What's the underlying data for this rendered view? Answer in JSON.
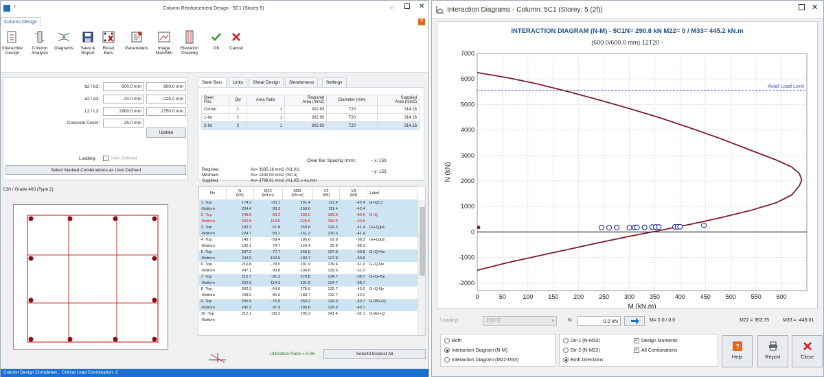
{
  "left": {
    "title": "Column Reinforcement Design -  5C1  (Storey 5)",
    "tab": "Column Design",
    "ribbon": [
      {
        "l1": "Interactive",
        "l2": "Design"
      },
      {
        "l1": "Column",
        "l2": "Analysis"
      },
      {
        "l1": "Diagrams",
        "l2": ""
      },
      {
        "l1": "Save &",
        "l2": "Report"
      },
      {
        "l1": "Reset",
        "l2": "Bars"
      },
      {
        "l1": "Parameters",
        "l2": ""
      },
      {
        "l1": "Image",
        "l2": "Max/Min"
      },
      {
        "l1": "Elevation",
        "l2": "Drawing"
      },
      {
        "l1": "OK",
        "l2": ""
      },
      {
        "l1": "Cancel",
        "l2": ""
      }
    ],
    "dims": [
      {
        "label": "b2 / b3:",
        "v1": "600.0 mm",
        "v2": "600.0 mm"
      },
      {
        "label": "e2 / e3:",
        "v1": "-20.0 mm",
        "v2": "-225.0 mm"
      },
      {
        "label": "L2 / L3:",
        "v1": "2900.0 mm",
        "v2": "2750.0 mm"
      }
    ],
    "cover_label": "Concrete Cover:",
    "cover_value": "25.0 mm",
    "update": "Update",
    "loading_label": "Loading:",
    "user_defined": "User Defined",
    "select_marked": "Select Marked Combinations as User Defined",
    "material": "C30 / Grade 460 (Type 2)",
    "tabs": [
      "Steel Bars",
      "Links",
      "Shear Design",
      "Slenderness",
      "Settings"
    ],
    "steel_headers": [
      "Steel\nPos.",
      "Qty",
      "Area Ratio",
      "Required\nArea (mm2)",
      "Diameter (mm)",
      "Supplied\nArea (mm2)"
    ],
    "steel_rows": [
      [
        "Corner",
        "1",
        "1",
        "302.93",
        "T20",
        "314.16"
      ],
      [
        "1-Int",
        "2",
        "1",
        "302.93",
        "T20",
        "314.16"
      ],
      [
        "2-Int",
        "2",
        "1",
        "302.93",
        "T20",
        "314.16"
      ]
    ],
    "clear_spacing": "Clear Bar Spacing (mm):",
    "x_sp": "- x: 153",
    "y_sp": "- y: 153",
    "req_rows": [
      {
        "k": "Required",
        "v": "As= 3635.16 mm2  (%1.01)"
      },
      {
        "k": "Minimum",
        "v": "As= 1440.00 mm2  (%0.4)"
      },
      {
        "k": "Supplied",
        "v": "As= 3769.91 mm2  (%1.05) ≥ As,min"
      }
    ],
    "grid_headers": [
      {
        "l1": "No",
        "l2": ""
      },
      {
        "l1": "N",
        "l2": "(kN)"
      },
      {
        "l1": "M22",
        "l2": "(kN.m)"
      },
      {
        "l1": "M33",
        "l2": "(kN.m)"
      },
      {
        "l1": "V2",
        "l2": "(kN)"
      },
      {
        "l1": "V3",
        "l2": "(kN)"
      },
      {
        "l1": "Label",
        "l2": ""
      }
    ],
    "grid_rows": [
      {
        "top": [
          "1 -Top",
          "174.2",
          "-65.1",
          "231.4",
          "111.4",
          "-42.4",
          "G+Q(1)"
        ],
        "bot": [
          "-Bottom",
          "204.4",
          "83.3",
          "-158.6",
          "111.4",
          "-42.4",
          ""
        ]
      },
      {
        "top": [
          "2 -Top",
          "248.5",
          "-93.2",
          "330.0",
          "159.0",
          "-60.6",
          "G+Q"
        ],
        "bot": [
          "-Bottom",
          "290.8",
          "119.0",
          "-226.5",
          "159.0",
          "-60.6",
          ""
        ]
      },
      {
        "top": [
          "3 -Top",
          "182.3",
          "-61.8",
          "259.8",
          "120.3",
          "-41.4",
          "(G+Q)p1"
        ],
        "bot": [
          "-Bottom",
          "224.7",
          "83.1",
          "-161.2",
          "120.3",
          "-41.4",
          ""
        ]
      },
      {
        "top": [
          "4 -Top",
          "149.7",
          "-59.4",
          "195.6",
          "92.8",
          "-38.3",
          "(G+Q)p2"
        ],
        "bot": [
          "-Bottom",
          "192.1",
          "74.7",
          "-129.4",
          "92.8",
          "-38.3",
          ""
        ]
      },
      {
        "top": [
          "5 -Top",
          "207.2",
          "-77.7",
          "263.5",
          "127.8",
          "-50.8",
          "G+Q+Nx"
        ],
        "bot": [
          "-Bottom",
          "243.5",
          "100.0",
          "-183.7",
          "127.8",
          "-50.8",
          ""
        ]
      },
      {
        "top": [
          "6 -Top",
          "210.8",
          "-78.5",
          "291.9",
          "139.6",
          "-51.0",
          "G+Q-Nx"
        ],
        "bot": [
          "-Bottom",
          "247.1",
          "99.8",
          "-196.8",
          "139.6",
          "-51.0",
          ""
        ]
      },
      {
        "top": [
          "7 -Top",
          "215.7",
          "-91.3",
          "279.8",
          "134.7",
          "-58.7",
          "G+Q+Ny"
        ],
        "bot": [
          "-Bottom",
          "252.0",
          "114.3",
          "-191.8",
          "134.7",
          "-58.7",
          ""
        ]
      },
      {
        "top": [
          "8 -Top",
          "202.3",
          "-64.9",
          "275.6",
          "132.7",
          "-43.0",
          "G+Q-Ny"
        ],
        "bot": [
          "-Bottom",
          "238.6",
          "85.6",
          "-188.7",
          "132.7",
          "-43.0",
          ""
        ]
      },
      {
        "top": [
          "9 -Top",
          "205.9",
          "-75.9",
          "260.2",
          "126.0",
          "-49.7",
          "G+Wx+Q"
        ],
        "bot": [
          "-Bottom",
          "242.2",
          "97.9",
          "-180.8",
          "126.0",
          "-49.7",
          ""
        ]
      },
      {
        "top": [
          "10 -Top",
          "212.1",
          "-80.3",
          "295.3",
          "141.4",
          "-52.1",
          "G-Wx+Q"
        ],
        "bot": [
          "-Bottom",
          "",
          "",
          "",
          "",
          "",
          ""
        ]
      }
    ],
    "utilization": "Utilization Ratio = 0.96",
    "select_all": "Select/Unselect All",
    "status": "Column Design Completed...  Critical Load Combination: 2"
  },
  "right": {
    "title": "Interaction Diagrams - Column: 5C1 (Storey: 5 (2f))",
    "chart_title": "INTERACTION DIAGRAM (N-M) - 5C1N= 290.8 kN   M22= 0 / M33= 445.2 kN.m",
    "chart_subtitle": "(600.0/600.0 mm) 12T20 -",
    "axial_limit": "Axial Load Limit",
    "loading_label": "Loading:",
    "loading_value": "2:G+Q",
    "n_label": "N:",
    "n_value": "0.0 kN",
    "m_readout": "M= 0.0 / 0.0",
    "m22": "M22 = 353.75",
    "m33": "M33 = -449.01",
    "opts_a": [
      "Both",
      "Interaction Diagram (N-M)",
      "Interaction Diagram (M22-M33)"
    ],
    "opts_b": [
      "Dir-1 (N-M33)",
      "Dir-2 (N-M22)",
      "Both Directions"
    ],
    "opts_c": [
      "Design Moments",
      "All Combinations"
    ],
    "help": "Help",
    "report": "Report",
    "close": "Close"
  },
  "chart_data": {
    "type": "line",
    "title": "INTERACTION DIAGRAM (N-M) - 5C1N= 290.8 kN   M22= 0 / M33= 445.2 kN.m",
    "subtitle": "(600.0/600.0 mm) 12T20 -",
    "xlabel": "M (kN.m)",
    "ylabel": "N (kN)",
    "xlim": [
      0,
      650
    ],
    "ylim": [
      -2300,
      7000
    ],
    "x_ticks": [
      0,
      50,
      100,
      150,
      200,
      250,
      300,
      350,
      400,
      450,
      500,
      550,
      600
    ],
    "y_ticks": [
      -2000,
      -1000,
      0,
      1000,
      2000,
      3000,
      4000,
      5000,
      6000,
      7000
    ],
    "grid": true,
    "axial_load_limit": 5550,
    "curve": {
      "x": [
        0,
        60,
        120,
        180,
        240,
        300,
        360,
        420,
        480,
        540,
        590,
        620,
        635,
        640,
        635,
        620,
        590,
        540,
        480,
        420,
        360,
        300,
        240,
        180,
        120,
        60,
        0
      ],
      "y": [
        6250,
        6050,
        5800,
        5500,
        5180,
        4840,
        4480,
        4080,
        3660,
        3200,
        2820,
        2550,
        2300,
        2050,
        1800,
        1450,
        1150,
        850,
        560,
        300,
        60,
        -170,
        -420,
        -680,
        -940,
        -1200,
        -1500
      ]
    },
    "points": {
      "x": [
        245,
        260,
        275,
        300,
        310,
        315,
        330,
        345,
        352,
        358,
        390,
        395,
        400,
        447
      ],
      "y": [
        170,
        170,
        175,
        170,
        175,
        180,
        180,
        190,
        195,
        195,
        200,
        200,
        205,
        260
      ]
    },
    "colors": {
      "curve": "#7a1c2c",
      "points": "#1b2d9a",
      "limit": "#2f4fd0",
      "axis": "#000000"
    }
  }
}
